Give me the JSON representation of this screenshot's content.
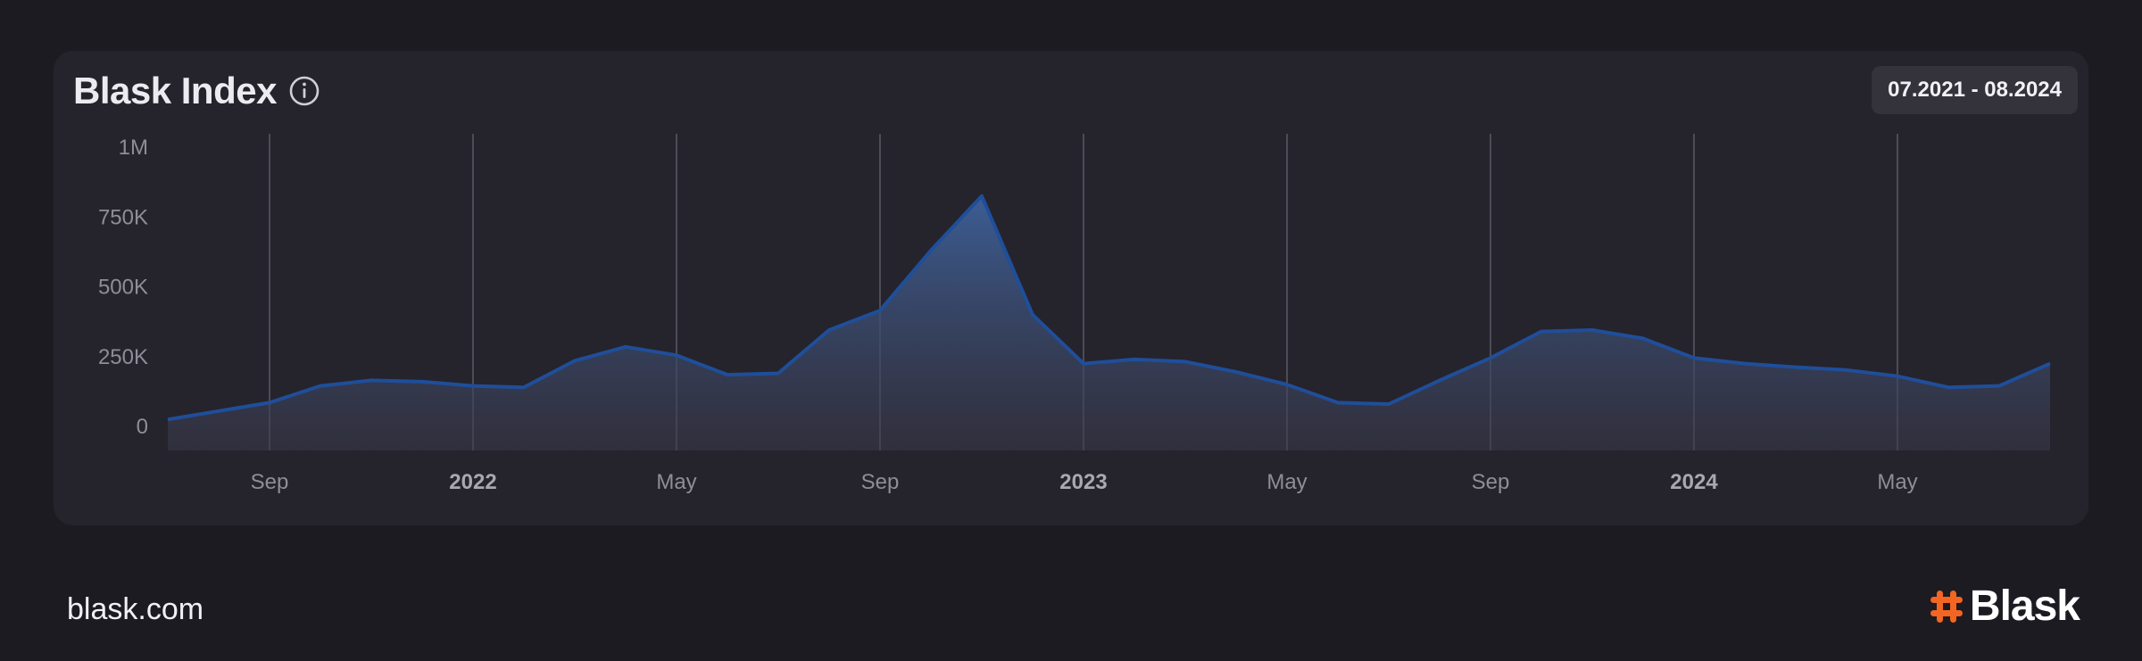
{
  "card": {
    "title": "Blask Index",
    "date_range": "07.2021 - 08.2024"
  },
  "footer": {
    "url": "blask.com",
    "brand": "Blask"
  },
  "colors": {
    "background": "#1d1b22",
    "card": "#25232c",
    "line": "#1f4e9a",
    "fill_top": "#3a5b91",
    "brand_accent": "#f26522"
  },
  "chart_data": {
    "type": "area",
    "title": "Blask Index",
    "y_ticks": [
      "1M",
      "750K",
      "500K",
      "250K",
      "0"
    ],
    "y_tick_values": [
      1000000,
      750000,
      500000,
      250000,
      0
    ],
    "ylim": [
      0,
      1000000
    ],
    "x_ticks": [
      {
        "label": "Sep",
        "date": "2021-09",
        "bold": false
      },
      {
        "label": "2022",
        "date": "2022-01",
        "bold": true
      },
      {
        "label": "May",
        "date": "2022-05",
        "bold": false
      },
      {
        "label": "Sep",
        "date": "2022-09",
        "bold": false
      },
      {
        "label": "2023",
        "date": "2023-01",
        "bold": true
      },
      {
        "label": "May",
        "date": "2023-05",
        "bold": false
      },
      {
        "label": "Sep",
        "date": "2023-09",
        "bold": false
      },
      {
        "label": "2024",
        "date": "2024-01",
        "bold": true
      },
      {
        "label": "May",
        "date": "2024-05",
        "bold": false
      }
    ],
    "grid": "vertical",
    "series": [
      {
        "x": [
          "2021-07",
          "2021-08",
          "2021-09",
          "2021-10",
          "2021-11",
          "2021-12",
          "2022-01",
          "2022-02",
          "2022-03",
          "2022-04",
          "2022-05",
          "2022-06",
          "2022-07",
          "2022-08",
          "2022-09",
          "2022-10",
          "2022-11",
          "2022-12",
          "2023-01",
          "2023-02",
          "2023-03",
          "2023-04",
          "2023-05",
          "2023-06",
          "2023-07",
          "2023-08",
          "2023-09",
          "2023-10",
          "2023-11",
          "2023-12",
          "2024-01",
          "2024-02",
          "2024-03",
          "2024-04",
          "2024-05",
          "2024-06",
          "2024-07",
          "2024-08"
        ],
        "values": [
          25000,
          55000,
          85000,
          145000,
          165000,
          160000,
          145000,
          140000,
          235000,
          285000,
          255000,
          185000,
          190000,
          345000,
          415000,
          630000,
          825000,
          400000,
          225000,
          240000,
          232000,
          195000,
          150000,
          85000,
          80000,
          165000,
          245000,
          340000,
          345000,
          315000,
          245000,
          225000,
          212000,
          202000,
          180000,
          140000,
          145000,
          225000
        ]
      }
    ]
  }
}
